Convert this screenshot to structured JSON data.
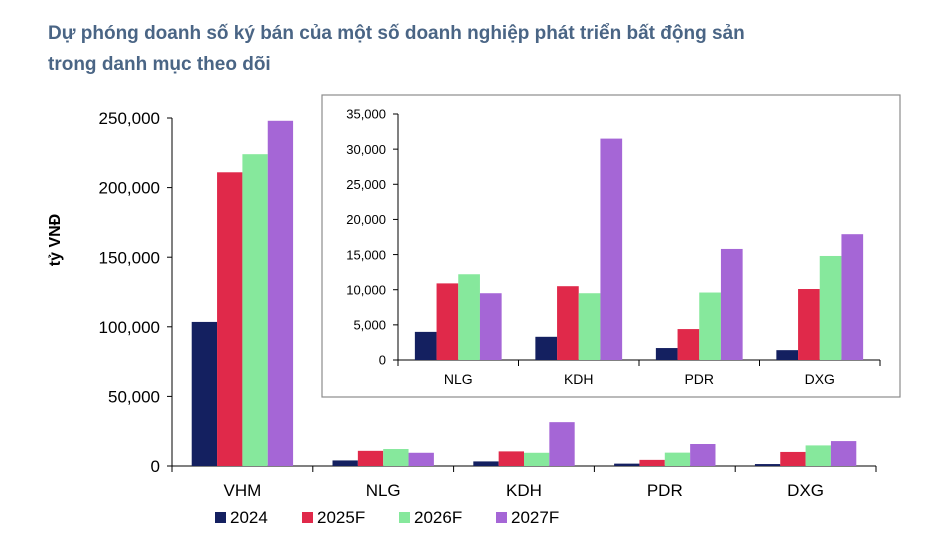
{
  "title": {
    "line1": "Dự phóng doanh số ký bán của một số doanh nghiệp phát triển bất động sản",
    "line2": "trong danh mục theo dõi"
  },
  "colors": {
    "2024": "#142060",
    "2025F": "#e0294a",
    "2026F": "#86e89c",
    "2027F": "#a566d6"
  },
  "chart_data": [
    {
      "type": "bar",
      "name": "main",
      "ylabel": "tỷ VNĐ",
      "ylim": [
        0,
        250000
      ],
      "yticks": [
        0,
        50000,
        100000,
        150000,
        200000,
        250000
      ],
      "ytick_labels": [
        "0",
        "50,000",
        "100,000",
        "150,000",
        "200,000",
        "250,000"
      ],
      "categories": [
        "VHM",
        "NLG",
        "KDH",
        "PDR",
        "DXG"
      ],
      "series": [
        {
          "name": "2024",
          "values": [
            103500,
            4000,
            3300,
            1700,
            1400
          ]
        },
        {
          "name": "2025F",
          "values": [
            211000,
            10900,
            10500,
            4400,
            10100
          ]
        },
        {
          "name": "2026F",
          "values": [
            224000,
            12200,
            9500,
            9600,
            14800
          ]
        },
        {
          "name": "2027F",
          "values": [
            248000,
            9500,
            31500,
            15800,
            17900
          ]
        }
      ],
      "legend": "bottom"
    },
    {
      "type": "bar",
      "name": "inset",
      "ylim": [
        0,
        35000
      ],
      "yticks": [
        0,
        5000,
        10000,
        15000,
        20000,
        25000,
        30000,
        35000
      ],
      "ytick_labels": [
        "0",
        "5,000",
        "10,000",
        "15,000",
        "20,000",
        "25,000",
        "30,000",
        "35,000"
      ],
      "categories": [
        "NLG",
        "KDH",
        "PDR",
        "DXG"
      ],
      "series": [
        {
          "name": "2024",
          "values": [
            4000,
            3300,
            1700,
            1400
          ]
        },
        {
          "name": "2025F",
          "values": [
            10900,
            10500,
            4400,
            10100
          ]
        },
        {
          "name": "2026F",
          "values": [
            12200,
            9500,
            9600,
            14800
          ]
        },
        {
          "name": "2027F",
          "values": [
            9500,
            31500,
            15800,
            17900
          ]
        }
      ]
    }
  ]
}
